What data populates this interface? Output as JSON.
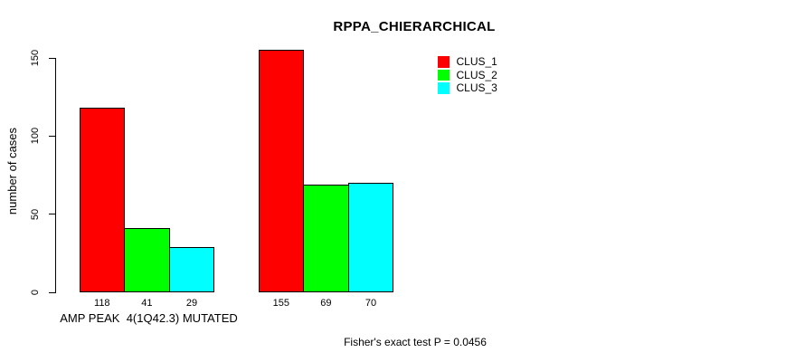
{
  "chart_data": {
    "type": "bar",
    "title": "RPPA_CHIERARCHICAL",
    "ylabel": "number of cases",
    "xlabel": "",
    "categories": [
      "AMP PEAK  4(1Q42.3) MUTATED",
      ""
    ],
    "series": [
      {
        "name": "CLUS_1",
        "color": "#ff0000",
        "values": [
          118,
          155
        ]
      },
      {
        "name": "CLUS_2",
        "color": "#00ff00",
        "values": [
          41,
          69
        ]
      },
      {
        "name": "CLUS_3",
        "color": "#00ffff",
        "values": [
          29,
          70
        ]
      }
    ],
    "bar_value_labels": [
      [
        118,
        41,
        29
      ],
      [
        155,
        69,
        70
      ]
    ],
    "yticks": [
      0,
      50,
      100,
      150
    ],
    "ylim": [
      0,
      160
    ],
    "grid": false,
    "legend_position": "top-right",
    "annotation": "Fisher's exact test P = 0.0456",
    "axis_color": "#000000",
    "background": "#ffffff"
  }
}
